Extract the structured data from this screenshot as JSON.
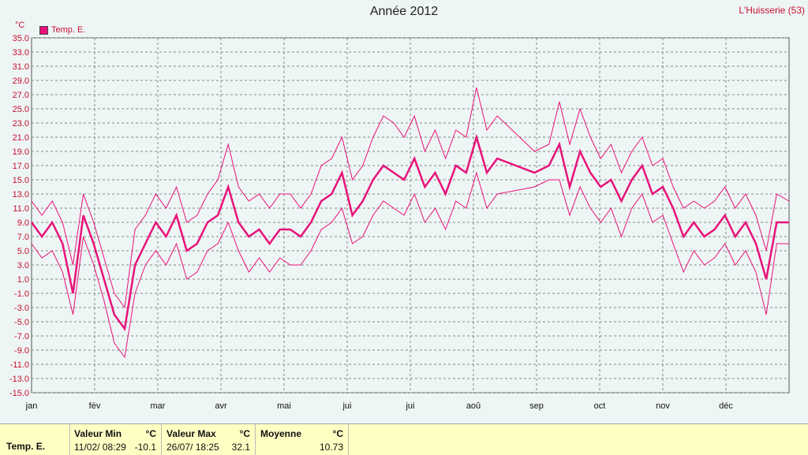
{
  "header": {
    "title": "Année 2012",
    "station": "L'Huisserie (53)",
    "unit": "°C",
    "legend_label": "Temp. E."
  },
  "colors": {
    "series": "#e8127a",
    "grid": "#888888",
    "background": "#eef5f5",
    "footer": "#ffffc4"
  },
  "chart_data": {
    "type": "line",
    "title": "Année 2012",
    "ylabel": "°C",
    "ylim": [
      -15,
      35
    ],
    "yticks": [
      "35.0",
      "33.0",
      "31.0",
      "29.0",
      "27.0",
      "25.0",
      "23.0",
      "21.0",
      "19.0",
      "17.0",
      "15.0",
      "13.0",
      "11.0",
      "9.0",
      "7.0",
      "5.0",
      "3.0",
      "1.0",
      "-1.0",
      "-3.0",
      "-5.0",
      "-7.0",
      "-9.0",
      "-11.0",
      "-13.0",
      "-15.0"
    ],
    "months": [
      "jan",
      "fév",
      "mar",
      "avr",
      "mai",
      "jui",
      "jui",
      "aoû",
      "sep",
      "oct",
      "nov",
      "déc"
    ],
    "grid": true,
    "legend": "top-left",
    "series": [
      {
        "name": "Temp. E.",
        "role": "mean",
        "x": [
          0,
          5,
          10,
          15,
          20,
          25,
          30,
          35,
          40,
          45,
          50,
          55,
          60,
          65,
          70,
          75,
          80,
          85,
          90,
          95,
          100,
          105,
          110,
          115,
          120,
          125,
          130,
          135,
          140,
          145,
          150,
          155,
          160,
          165,
          170,
          175,
          180,
          185,
          190,
          195,
          200,
          205,
          210,
          215,
          220,
          225,
          243,
          250,
          255,
          260,
          265,
          270,
          275,
          280,
          285,
          290,
          295,
          300,
          305,
          310,
          315,
          320,
          325,
          330,
          335,
          340,
          345,
          350,
          355,
          360,
          366
        ],
        "y": [
          9,
          7,
          9,
          6,
          -1,
          10,
          6,
          1,
          -4,
          -6,
          3,
          6,
          9,
          7,
          10,
          5,
          6,
          9,
          10,
          14,
          9,
          7,
          8,
          6,
          8,
          8,
          7,
          9,
          12,
          13,
          16,
          10,
          12,
          15,
          17,
          16,
          15,
          18,
          14,
          16,
          13,
          17,
          16,
          21,
          16,
          18,
          16,
          17,
          20,
          14,
          19,
          16,
          14,
          15,
          12,
          15,
          17,
          13,
          14,
          11,
          7,
          9,
          7,
          8,
          10,
          7,
          9,
          6,
          1,
          9,
          9
        ],
        "y_max": [
          12,
          10,
          12,
          9,
          3,
          13,
          9,
          4,
          -1,
          -3,
          8,
          10,
          13,
          11,
          14,
          9,
          10,
          13,
          15,
          20,
          14,
          12,
          13,
          11,
          13,
          13,
          11,
          13,
          17,
          18,
          21,
          15,
          17,
          21,
          24,
          23,
          21,
          24,
          19,
          22,
          18,
          22,
          21,
          28,
          22,
          24,
          19,
          20,
          26,
          20,
          25,
          21,
          18,
          20,
          16,
          19,
          21,
          17,
          18,
          14,
          11,
          12,
          11,
          12,
          14,
          11,
          13,
          10,
          5,
          13,
          12
        ],
        "y_min": [
          6,
          4,
          5,
          2,
          -4,
          7,
          3,
          -2,
          -8,
          -10,
          -1,
          3,
          5,
          3,
          6,
          1,
          2,
          5,
          6,
          9,
          5,
          2,
          4,
          2,
          4,
          3,
          3,
          5,
          8,
          9,
          11,
          6,
          7,
          10,
          12,
          11,
          10,
          13,
          9,
          11,
          8,
          12,
          11,
          16,
          11,
          13,
          14,
          15,
          15,
          10,
          14,
          11,
          9,
          11,
          7,
          11,
          13,
          9,
          10,
          6,
          2,
          5,
          3,
          4,
          6,
          3,
          5,
          2,
          -4,
          6,
          6
        ]
      }
    ]
  },
  "footer": {
    "series_label": "Temp. E.",
    "min_title": "Valeur Min",
    "min_unit": "°C",
    "min_date": "11/02/  08:29",
    "min_value": "-10.1",
    "max_title": "Valeur Max",
    "max_unit": "°C",
    "max_date": "26/07/  18:25",
    "max_value": "32.1",
    "avg_title": "Moyenne",
    "avg_unit": "°C",
    "avg_value": "10.73"
  }
}
